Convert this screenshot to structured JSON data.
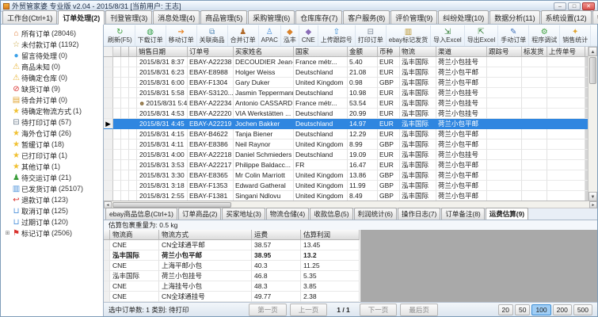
{
  "window": {
    "title": "外贸管家婆 专业版 v2.04 - 2015/8/31 [当前用户: 王志]",
    "min": "–",
    "max": "□",
    "close": "✕"
  },
  "main_tabs": [
    {
      "label": "工作台(Ctrl+1)"
    },
    {
      "label": "订单处理(2)",
      "active": true
    },
    {
      "label": "刊登管理(3)"
    },
    {
      "label": "消息处理(4)"
    },
    {
      "label": "商品管理(5)"
    },
    {
      "label": "采购管理(6)"
    },
    {
      "label": "仓库库存(7)"
    },
    {
      "label": "客户服务(8)"
    },
    {
      "label": "评价管理(9)"
    },
    {
      "label": "纠纷处理(10)"
    },
    {
      "label": "数据分析(11)"
    },
    {
      "label": "系统设置(12)"
    },
    {
      "label": "帮助关于(13)"
    }
  ],
  "toolbar": [
    {
      "label": "刷新(F5)",
      "icon": "refresh-icon",
      "glyph": "↻",
      "style": "color:#3a9d3a"
    },
    {
      "label": "下载订单",
      "icon": "download-orders-icon",
      "glyph": "◍",
      "style": "color:#2f9e44"
    },
    {
      "label": "移动订单",
      "icon": "move-order-icon",
      "glyph": "➔",
      "style": "color:#e8872a"
    },
    {
      "label": "关联商品",
      "icon": "link-product-icon",
      "glyph": "⧉",
      "style": "color:#5b8db8"
    },
    {
      "label": "合并订单",
      "icon": "merge-orders-icon",
      "glyph": "♟",
      "style": "color:#b06a2a"
    },
    {
      "label": "APAC",
      "icon": "apac-icon",
      "glyph": "♙",
      "style": "color:#4a90d9"
    },
    {
      "label": "泓丰",
      "icon": "hongfeng-icon",
      "glyph": "◆",
      "style": "color:#d9822a"
    },
    {
      "label": "CNE",
      "icon": "cne-icon",
      "glyph": "◆",
      "style": "color:#8a6db8"
    },
    {
      "label": "上传跟踪号",
      "icon": "upload-tracking-icon",
      "glyph": "⇧",
      "style": "color:#2f86d0"
    },
    {
      "label": "打印订单",
      "icon": "print-order-icon",
      "glyph": "⊟",
      "style": "color:#7a8694"
    },
    {
      "label": "ebay标记发货",
      "icon": "ebay-mark-shipped-icon",
      "glyph": "▥",
      "style": "color:#b8922a"
    },
    {
      "label": "导入Excel",
      "icon": "import-excel-icon",
      "glyph": "⇲",
      "style": "color:#2f7d32"
    },
    {
      "label": "导出Excel",
      "icon": "export-excel-icon",
      "glyph": "⇱",
      "style": "color:#2f7d32"
    },
    {
      "label": "手动订单",
      "icon": "manual-order-icon",
      "glyph": "✎",
      "style": "color:#3d6fb8"
    },
    {
      "label": "程序调试",
      "icon": "debug-icon",
      "glyph": "⚙",
      "style": "color:#3a9d3a"
    },
    {
      "label": "销售统计",
      "icon": "sales-stats-icon",
      "glyph": "✦",
      "style": "color:#e0a32e"
    }
  ],
  "sidebar": {
    "items": [
      {
        "label": "所有订单",
        "count": "(28046)",
        "exp": "",
        "icon": "home-icon",
        "glyph": "⌂",
        "style": "color:#e07a30"
      },
      {
        "label": "未付款订单",
        "count": "(1192)",
        "exp": "",
        "icon": "star-outline-icon",
        "glyph": "☆",
        "style": "color:#c8a23a"
      },
      {
        "label": "留言待处理",
        "count": "(0)",
        "exp": "",
        "icon": "message-icon",
        "glyph": "●",
        "style": "color:#3aa0e8"
      },
      {
        "label": "商品未知",
        "count": "(0)",
        "exp": "",
        "icon": "warning-icon",
        "glyph": "⚠",
        "style": "color:#e8b53a"
      },
      {
        "label": "待确定仓库",
        "count": "(0)",
        "exp": "",
        "icon": "warning-icon",
        "glyph": "⚠",
        "style": "color:#e8b53a"
      },
      {
        "label": "缺货订单",
        "count": "(9)",
        "exp": "",
        "icon": "no-entry-icon",
        "glyph": "⊘",
        "style": "color:#d9302c"
      },
      {
        "label": "待合并订单",
        "count": "(0)",
        "exp": "",
        "icon": "folder-icon",
        "glyph": "▤",
        "style": "color:#e0a32e"
      },
      {
        "label": "待确定物流方式",
        "count": "(1)",
        "exp": "",
        "icon": "star-icon",
        "glyph": "★",
        "style": "color:#f0c030"
      },
      {
        "label": "待打印订单",
        "count": "(57)",
        "exp": "",
        "icon": "printer-icon",
        "glyph": "⊟",
        "style": "color:#6a7a8a"
      },
      {
        "label": "海外仓订单",
        "count": "(26)",
        "exp": "",
        "icon": "star-icon",
        "glyph": "★",
        "style": "color:#f0c030"
      },
      {
        "label": "暂缓订单",
        "count": "(18)",
        "exp": "",
        "icon": "star-icon",
        "glyph": "★",
        "style": "color:#f0c030"
      },
      {
        "label": "已打印订单",
        "count": "(1)",
        "exp": "",
        "icon": "star-icon",
        "glyph": "★",
        "style": "color:#f0c030"
      },
      {
        "label": "其他订单",
        "count": "(1)",
        "exp": "",
        "icon": "star-icon",
        "glyph": "★",
        "style": "color:#f0c030"
      },
      {
        "label": "待交运订单",
        "count": "(21)",
        "exp": "",
        "icon": "person-icon",
        "glyph": "♟",
        "style": "color:#3a9d3a"
      },
      {
        "label": "已发货订单",
        "count": "(25107)",
        "exp": "",
        "icon": "truck-icon",
        "glyph": "▥",
        "style": "color:#4a90d9"
      },
      {
        "label": "退款订单",
        "count": "(123)",
        "exp": "",
        "icon": "refund-icon",
        "glyph": "↩",
        "style": "color:#d9302c"
      },
      {
        "label": "取消订单",
        "count": "(125)",
        "exp": "",
        "icon": "trash-icon",
        "glyph": "⊔",
        "style": "color:#4a90d9"
      },
      {
        "label": "过期订单",
        "count": "(120)",
        "exp": "",
        "icon": "trash-icon",
        "glyph": "⊔",
        "style": "color:#4a90d9"
      },
      {
        "label": "标记订单",
        "count": "(2506)",
        "exp": "⊞",
        "icon": "flag-icon",
        "glyph": "⚑",
        "style": "color:#d9302c"
      }
    ]
  },
  "grid": {
    "columns": [
      "销售日期",
      "订单号",
      "买家姓名",
      "国家",
      "金额",
      "币种",
      "物流",
      "渠道",
      "跟踪号",
      "标发货",
      "上传单号"
    ],
    "rows": [
      {
        "ptr": "",
        "pre": "",
        "date": "2015/8/31 8:37",
        "order": "EBAY-A22238",
        "buyer": "DECOUDIER Jean-F...",
        "country": "France métr...",
        "amount": "5.40",
        "currency": "EUR",
        "logistics": "泓丰国际",
        "channel": "荷兰小包挂号"
      },
      {
        "ptr": "",
        "pre": "",
        "date": "2015/8/31 6:23",
        "order": "EBAY-E8988",
        "buyer": "Holger Weiss",
        "country": "Deutschland",
        "amount": "21.08",
        "currency": "EUR",
        "logistics": "泓丰国际",
        "channel": "荷兰小包平邮"
      },
      {
        "ptr": "",
        "pre": "",
        "date": "2015/8/31 6:00",
        "order": "EBAY-F1304",
        "buyer": "Gary Duker",
        "country": "United Kingdom",
        "amount": "0.98",
        "currency": "GBP",
        "logistics": "泓丰国际",
        "channel": "荷兰小包平邮"
      },
      {
        "ptr": "",
        "pre": "",
        "date": "2015/8/31 5:58",
        "order": "EBAY-S3120...",
        "buyer": "Jasmin Teppermann",
        "country": "Deutschland",
        "amount": "10.98",
        "currency": "EUR",
        "logistics": "泓丰国际",
        "channel": "荷兰小包挂号"
      },
      {
        "ptr": "",
        "pre": "☻",
        "prestyle": "color:#8a6d3b",
        "date": "2015/8/31 5:47",
        "order": "EBAY-A22234",
        "buyer": "Antonio CASSARD",
        "country": "France métr...",
        "amount": "53.54",
        "currency": "EUR",
        "logistics": "泓丰国际",
        "channel": "荷兰小包挂号"
      },
      {
        "ptr": "",
        "pre": "",
        "date": "2015/8/31 4:53",
        "order": "EBAY-A22220",
        "buyer": "VIA Werkstätten ...",
        "country": "Deutschland",
        "amount": "20.99",
        "currency": "EUR",
        "logistics": "泓丰国际",
        "channel": "荷兰小包挂号"
      },
      {
        "ptr": "▶",
        "pre": "",
        "date": "2015/8/31 4:45",
        "order": "EBAY-A22219",
        "buyer": "Jochen Bakker",
        "country": "Deutschland",
        "amount": "14.97",
        "currency": "EUR",
        "logistics": "泓丰国际",
        "channel": "荷兰小包平邮",
        "selected": true
      },
      {
        "ptr": "",
        "pre": "",
        "date": "2015/8/31 4:15",
        "order": "EBAY-B4622",
        "buyer": "Tanja Biener",
        "country": "Deutschland",
        "amount": "12.29",
        "currency": "EUR",
        "logistics": "泓丰国际",
        "channel": "荷兰小包平邮"
      },
      {
        "ptr": "",
        "pre": "",
        "date": "2015/8/31 4:11",
        "order": "EBAY-E8386",
        "buyer": "Neil Raynor",
        "country": "United Kingdom",
        "amount": "8.99",
        "currency": "GBP",
        "logistics": "泓丰国际",
        "channel": "荷兰小包平邮"
      },
      {
        "ptr": "",
        "pre": "",
        "date": "2015/8/31 4:00",
        "order": "EBAY-A22218",
        "buyer": "Daniel Schmieders",
        "country": "Deutschland",
        "amount": "19.09",
        "currency": "EUR",
        "logistics": "泓丰国际",
        "channel": "荷兰小包挂号"
      },
      {
        "ptr": "",
        "pre": "",
        "date": "2015/8/31 3:53",
        "order": "EBAY-A22217",
        "buyer": "Philippe Baldacc...",
        "country": "FR",
        "amount": "16.47",
        "currency": "EUR",
        "logistics": "泓丰国际",
        "channel": "荷兰小包平邮"
      },
      {
        "ptr": "",
        "pre": "",
        "date": "2015/8/31 3:30",
        "order": "EBAY-E8365",
        "buyer": "Mr Colin Marriott",
        "country": "United Kingdom",
        "amount": "13.86",
        "currency": "GBP",
        "logistics": "泓丰国际",
        "channel": "荷兰小包平邮"
      },
      {
        "ptr": "",
        "pre": "",
        "date": "2015/8/31 3:18",
        "order": "EBAY-F1353",
        "buyer": "Edward Gatheral",
        "country": "United Kingdom",
        "amount": "11.99",
        "currency": "GBP",
        "logistics": "泓丰国际",
        "channel": "荷兰小包平邮"
      },
      {
        "ptr": "",
        "pre": "",
        "date": "2015/8/31 2:55",
        "order": "EBAY-F1381",
        "buyer": "Singani Ndlovu",
        "country": "United Kingdom",
        "amount": "8.49",
        "currency": "GBP",
        "logistics": "泓丰国际",
        "channel": "荷兰小包平邮"
      }
    ]
  },
  "detail_tabs": [
    {
      "label": "ebay商品信息(Ctrl+1)"
    },
    {
      "label": "订单商品(2)"
    },
    {
      "label": "买家地址(3)"
    },
    {
      "label": "物流仓储(4)"
    },
    {
      "label": "收款信息(5)"
    },
    {
      "label": "利润统计(6)"
    },
    {
      "label": "操作日志(7)"
    },
    {
      "label": "订单备注(8)"
    },
    {
      "label": "运费估算(9)",
      "active": true
    }
  ],
  "freight": {
    "weight_label": "估算包裹重量为: 0.5 kg",
    "columns": [
      "物流商",
      "物流方式",
      "运费",
      "估算利润"
    ],
    "rows": [
      {
        "carrier": "CNE",
        "method": "CN全球通平邮",
        "cost": "38.57",
        "profit": "13.45"
      },
      {
        "carrier": "泓丰国际",
        "method": "荷兰小包平邮",
        "cost": "38.95",
        "profit": "13.2",
        "selected": true
      },
      {
        "carrier": "CNE",
        "method": "上海平邮小包",
        "cost": "40.3",
        "profit": "11.25"
      },
      {
        "carrier": "泓丰国际",
        "method": "荷兰小包挂号",
        "cost": "46.8",
        "profit": "5.35"
      },
      {
        "carrier": "CNE",
        "method": "上海挂号小包",
        "cost": "48.3",
        "profit": "3.85"
      },
      {
        "carrier": "CNE",
        "method": "CN全球通挂号",
        "cost": "49.77",
        "profit": "2.38"
      }
    ]
  },
  "status": {
    "selected_info": "选中订单数: 1  类别: 待打印",
    "first": "第一页",
    "prev": "上一页",
    "page": "1 / 1",
    "next": "下一页",
    "last": "最后页",
    "page_sizes": [
      {
        "label": "20"
      },
      {
        "label": "50"
      },
      {
        "label": "100",
        "active": true
      },
      {
        "label": "200"
      },
      {
        "label": "500"
      }
    ]
  }
}
